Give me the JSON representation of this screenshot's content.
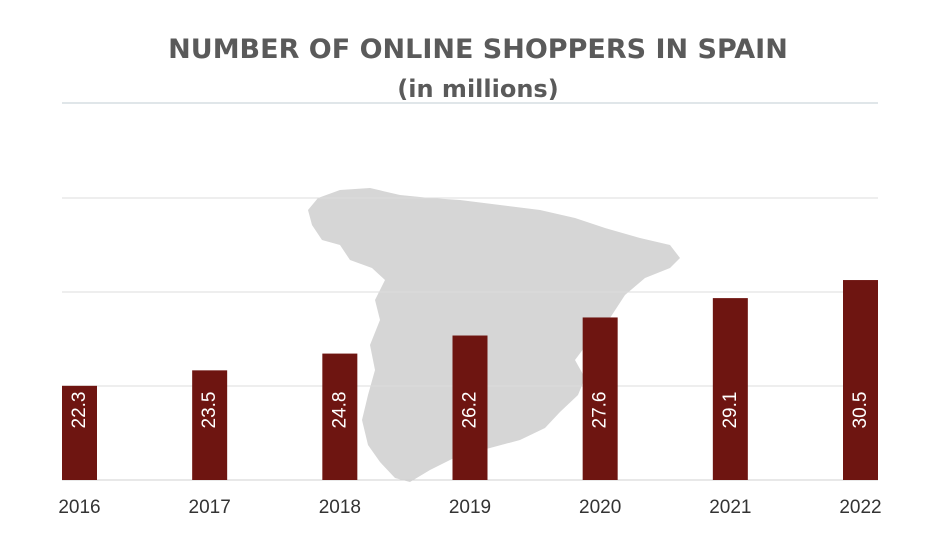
{
  "chart_data": {
    "type": "bar",
    "title": "NUMBER OF ONLINE SHOPPERS IN SPAIN",
    "subtitle": "(in millions)",
    "categories": [
      "2016",
      "2017",
      "2018",
      "2019",
      "2020",
      "2021",
      "2022"
    ],
    "values": [
      22.3,
      23.5,
      24.8,
      26.2,
      27.6,
      29.1,
      30.5
    ],
    "data_labels": [
      "22.3",
      "23.5",
      "24.8",
      "26.2",
      "27.6",
      "29.1",
      "30.5"
    ],
    "bar_color": "#6e1511",
    "grid": true,
    "legend": "none",
    "background_image": "spain-map-silhouette",
    "map_color": "#d6d6d6"
  }
}
